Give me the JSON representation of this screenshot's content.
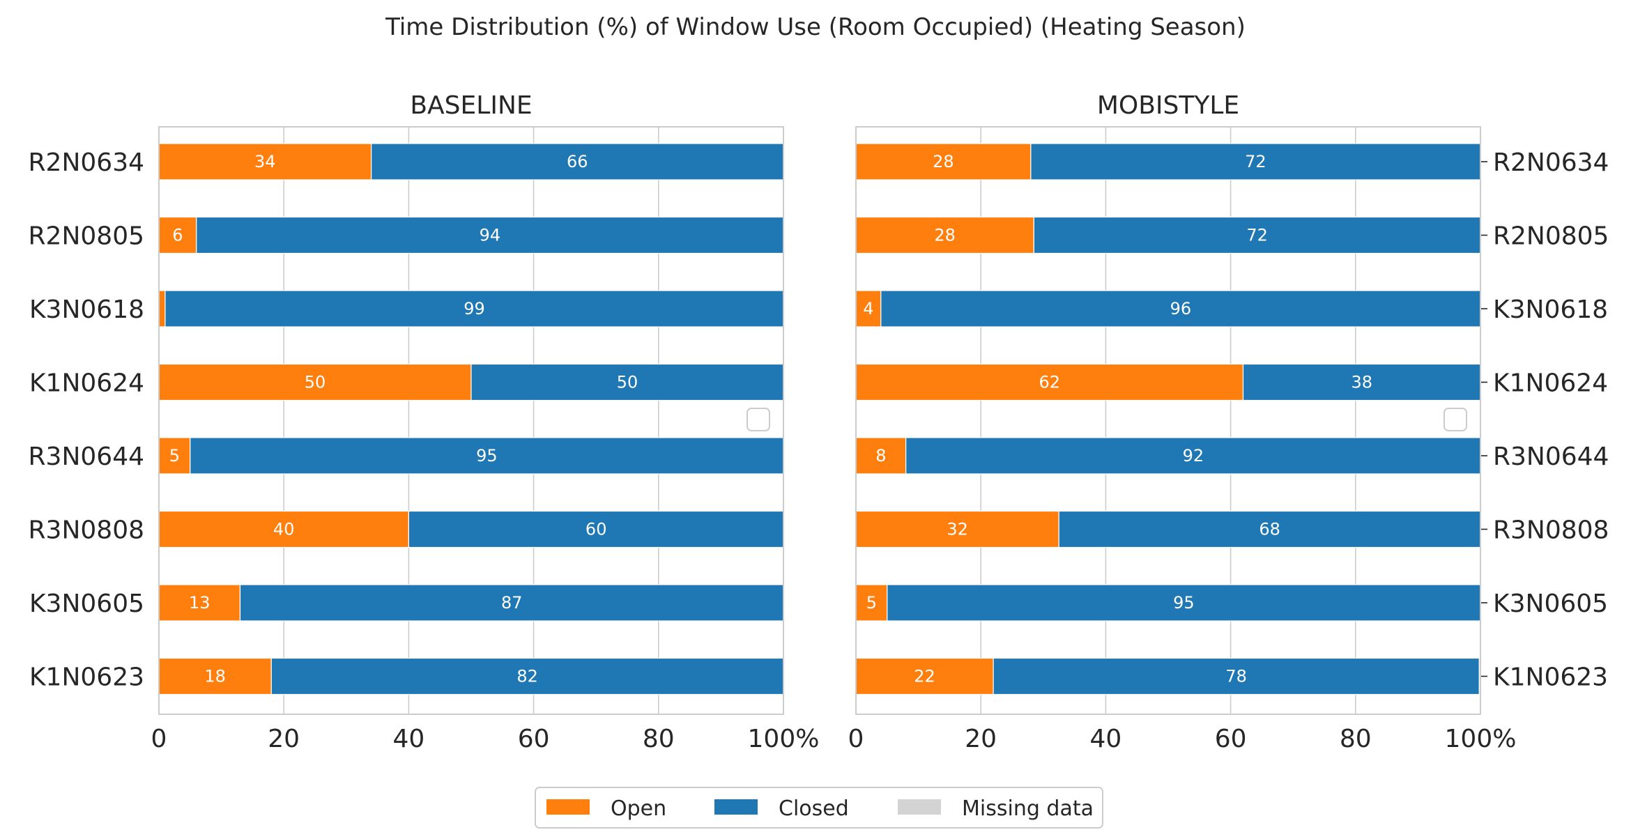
{
  "title": "Time Distribution (%) of Window Use (Room Occupied) (Heating Season)",
  "colors": {
    "Open": "#ff7f0e",
    "Closed": "#1f77b4",
    "Missing data": "#d3d3d3",
    "grid": "#cccccc",
    "frame": "#cccccc"
  },
  "legend": {
    "placement": "bottom-center",
    "entries": [
      "Open",
      "Closed",
      "Missing data"
    ]
  },
  "chart_data": [
    {
      "type": "bar",
      "orientation": "horizontal",
      "stacked": true,
      "title": "BASELINE",
      "categories": [
        "R2N0634",
        "R2N0805",
        "K3N0618",
        "K1N0624",
        "R3N0644",
        "R3N0808",
        "K3N0605",
        "K1N0623"
      ],
      "series": [
        {
          "name": "Open",
          "values": [
            34,
            6,
            1,
            50,
            5,
            40,
            13,
            18
          ],
          "labels": [
            "34",
            "6",
            "",
            "50",
            "5",
            "40",
            "13",
            "18"
          ]
        },
        {
          "name": "Closed",
          "values": [
            66,
            94,
            99,
            50,
            95,
            60,
            87,
            82
          ],
          "labels": [
            "66",
            "94",
            "99",
            "50",
            "95",
            "60",
            "87",
            "82"
          ]
        },
        {
          "name": "Missing data",
          "values": [
            0,
            0,
            0,
            0,
            0,
            0,
            0,
            0
          ],
          "labels": [
            "",
            "",
            "",
            "",
            "",
            "",
            "",
            ""
          ]
        }
      ],
      "xticks": [
        "0",
        "20",
        "40",
        "60",
        "80",
        "100%"
      ],
      "xlim": [
        0,
        100
      ],
      "grid": true,
      "yaxis_side": "left"
    },
    {
      "type": "bar",
      "orientation": "horizontal",
      "stacked": true,
      "title": "MOBISTYLE",
      "categories": [
        "R2N0634",
        "R2N0805",
        "K3N0618",
        "K1N0624",
        "R3N0644",
        "R3N0808",
        "K3N0605",
        "K1N0623"
      ],
      "series": [
        {
          "name": "Open",
          "values": [
            28,
            28.5,
            4,
            62,
            8,
            32.5,
            5,
            22
          ],
          "labels": [
            "28",
            "28",
            "4",
            "62",
            "8",
            "32",
            "5",
            "22"
          ]
        },
        {
          "name": "Closed",
          "values": [
            72,
            71.5,
            96,
            38,
            92,
            67.5,
            95,
            77.8
          ],
          "labels": [
            "72",
            "72",
            "96",
            "38",
            "92",
            "68",
            "95",
            "78"
          ]
        },
        {
          "name": "Missing data",
          "values": [
            0,
            0,
            0,
            0,
            0,
            0,
            0,
            0
          ],
          "labels": [
            "",
            "",
            "",
            "",
            "",
            "",
            "",
            ""
          ]
        }
      ],
      "xticks": [
        "0",
        "20",
        "40",
        "60",
        "80",
        "100%"
      ],
      "xlim": [
        0,
        100
      ],
      "grid": true,
      "yaxis_side": "right"
    }
  ]
}
